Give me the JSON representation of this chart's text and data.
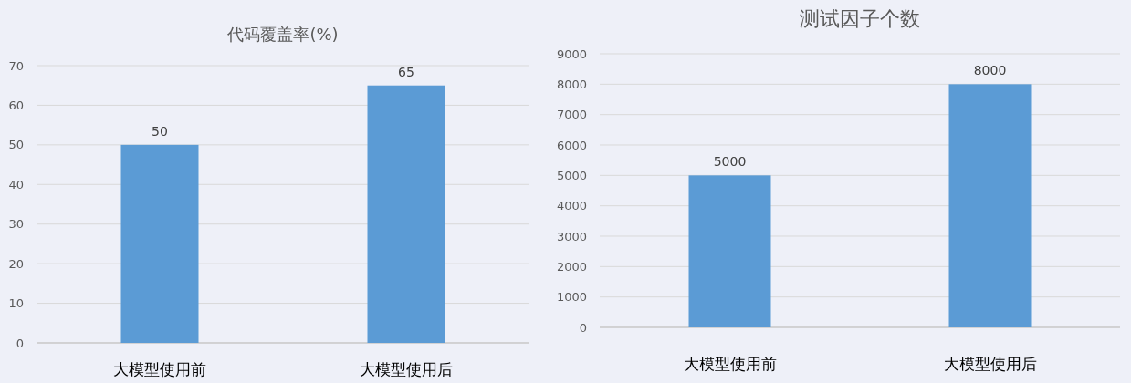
{
  "chart_data": [
    {
      "type": "bar",
      "title": "代码覆盖率(%)",
      "categories": [
        "大模型使用前",
        "大模型使用后"
      ],
      "values": [
        50,
        65
      ],
      "color": "#5b9bd5",
      "ylim": [
        0,
        70
      ],
      "yticks": [
        0,
        10,
        20,
        30,
        40,
        50,
        60,
        70
      ],
      "grid": "y",
      "data_labels": true
    },
    {
      "type": "bar",
      "title": "测试因子个数",
      "categories": [
        "大模型使用前",
        "大模型使用后"
      ],
      "values": [
        5000,
        8000
      ],
      "color": "#5b9bd5",
      "ylim": [
        0,
        9000
      ],
      "yticks": [
        0,
        1000,
        2000,
        3000,
        4000,
        5000,
        6000,
        7000,
        8000,
        9000
      ],
      "grid": "y",
      "data_labels": true
    }
  ]
}
